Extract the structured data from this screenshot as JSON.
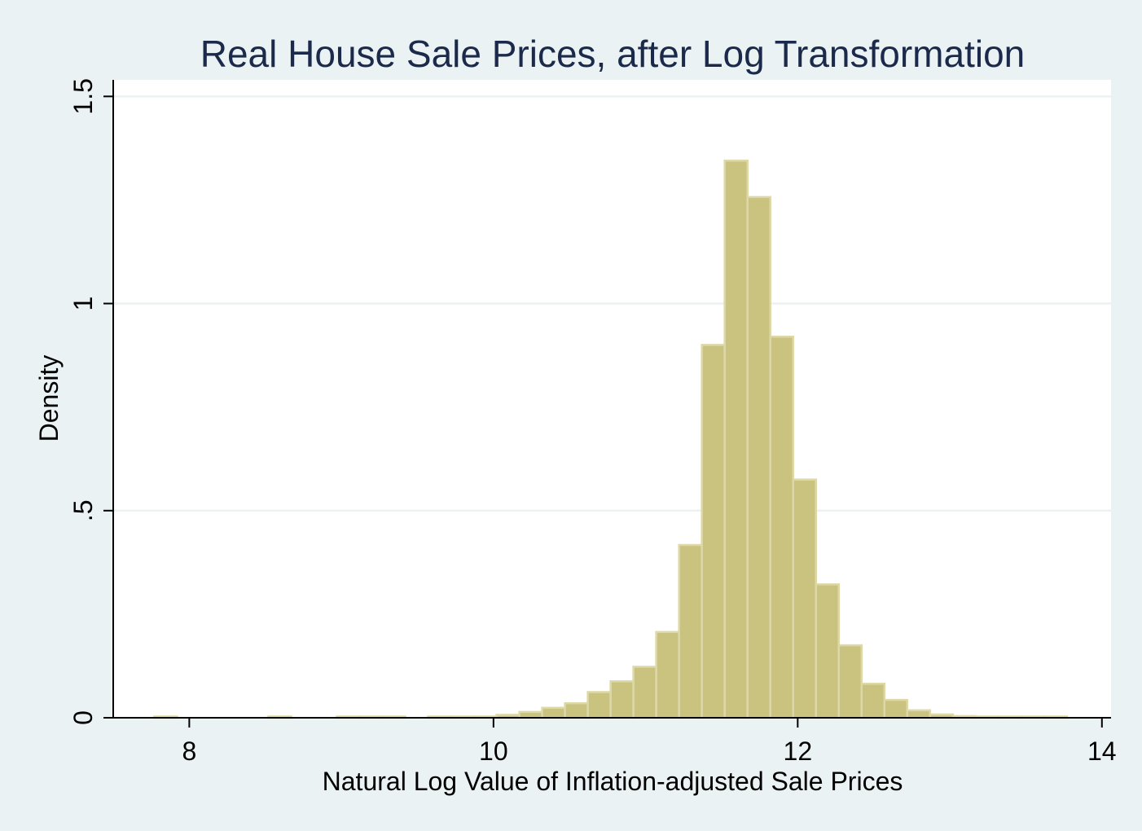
{
  "colors": {
    "background": "#eaf2f3",
    "plot_background": "#ffffff",
    "bar_fill": "#cac27f",
    "bar_stroke": "#ddd8a6",
    "gridline": "#eaf2f3",
    "title": "#1b2a4a",
    "axis": "#000000"
  },
  "chart_data": {
    "type": "bar",
    "title": "Real House Sale Prices, after Log Transformation",
    "xlabel": "Natural Log Value of Inflation-adjusted Sale Prices",
    "ylabel": "Density",
    "xlim": [
      7.5,
      14.06
    ],
    "ylim": [
      0,
      1.54
    ],
    "grid": true,
    "bin_width": 0.15,
    "x_ticks": [
      {
        "value": 8,
        "label": "8"
      },
      {
        "value": 10,
        "label": "10"
      },
      {
        "value": 12,
        "label": "12"
      },
      {
        "value": 14,
        "label": "14"
      }
    ],
    "y_ticks": [
      {
        "value": 0,
        "label": "0"
      },
      {
        "value": 0.5,
        "label": ".5"
      },
      {
        "value": 1,
        "label": "1"
      },
      {
        "value": 1.5,
        "label": "1.5"
      }
    ],
    "bins": [
      {
        "x": 7.77,
        "density": 0.002
      },
      {
        "x": 8.52,
        "density": 0.002
      },
      {
        "x": 8.97,
        "density": 0.002
      },
      {
        "x": 9.12,
        "density": 0.002
      },
      {
        "x": 9.27,
        "density": 0.002
      },
      {
        "x": 9.57,
        "density": 0.002
      },
      {
        "x": 9.72,
        "density": 0.002
      },
      {
        "x": 9.87,
        "density": 0.003
      },
      {
        "x": 10.02,
        "density": 0.007
      },
      {
        "x": 10.17,
        "density": 0.014
      },
      {
        "x": 10.32,
        "density": 0.024
      },
      {
        "x": 10.47,
        "density": 0.035
      },
      {
        "x": 10.62,
        "density": 0.062
      },
      {
        "x": 10.77,
        "density": 0.088
      },
      {
        "x": 10.92,
        "density": 0.123
      },
      {
        "x": 11.07,
        "density": 0.207
      },
      {
        "x": 11.22,
        "density": 0.417
      },
      {
        "x": 11.37,
        "density": 0.9
      },
      {
        "x": 11.52,
        "density": 1.345
      },
      {
        "x": 11.67,
        "density": 1.257
      },
      {
        "x": 11.82,
        "density": 0.92
      },
      {
        "x": 11.97,
        "density": 0.575
      },
      {
        "x": 12.12,
        "density": 0.322
      },
      {
        "x": 12.27,
        "density": 0.175
      },
      {
        "x": 12.42,
        "density": 0.082
      },
      {
        "x": 12.57,
        "density": 0.043
      },
      {
        "x": 12.72,
        "density": 0.018
      },
      {
        "x": 12.87,
        "density": 0.008
      },
      {
        "x": 13.02,
        "density": 0.004
      },
      {
        "x": 13.17,
        "density": 0.003
      },
      {
        "x": 13.32,
        "density": 0.002
      },
      {
        "x": 13.47,
        "density": 0.002
      },
      {
        "x": 13.62,
        "density": 0.002
      }
    ]
  }
}
